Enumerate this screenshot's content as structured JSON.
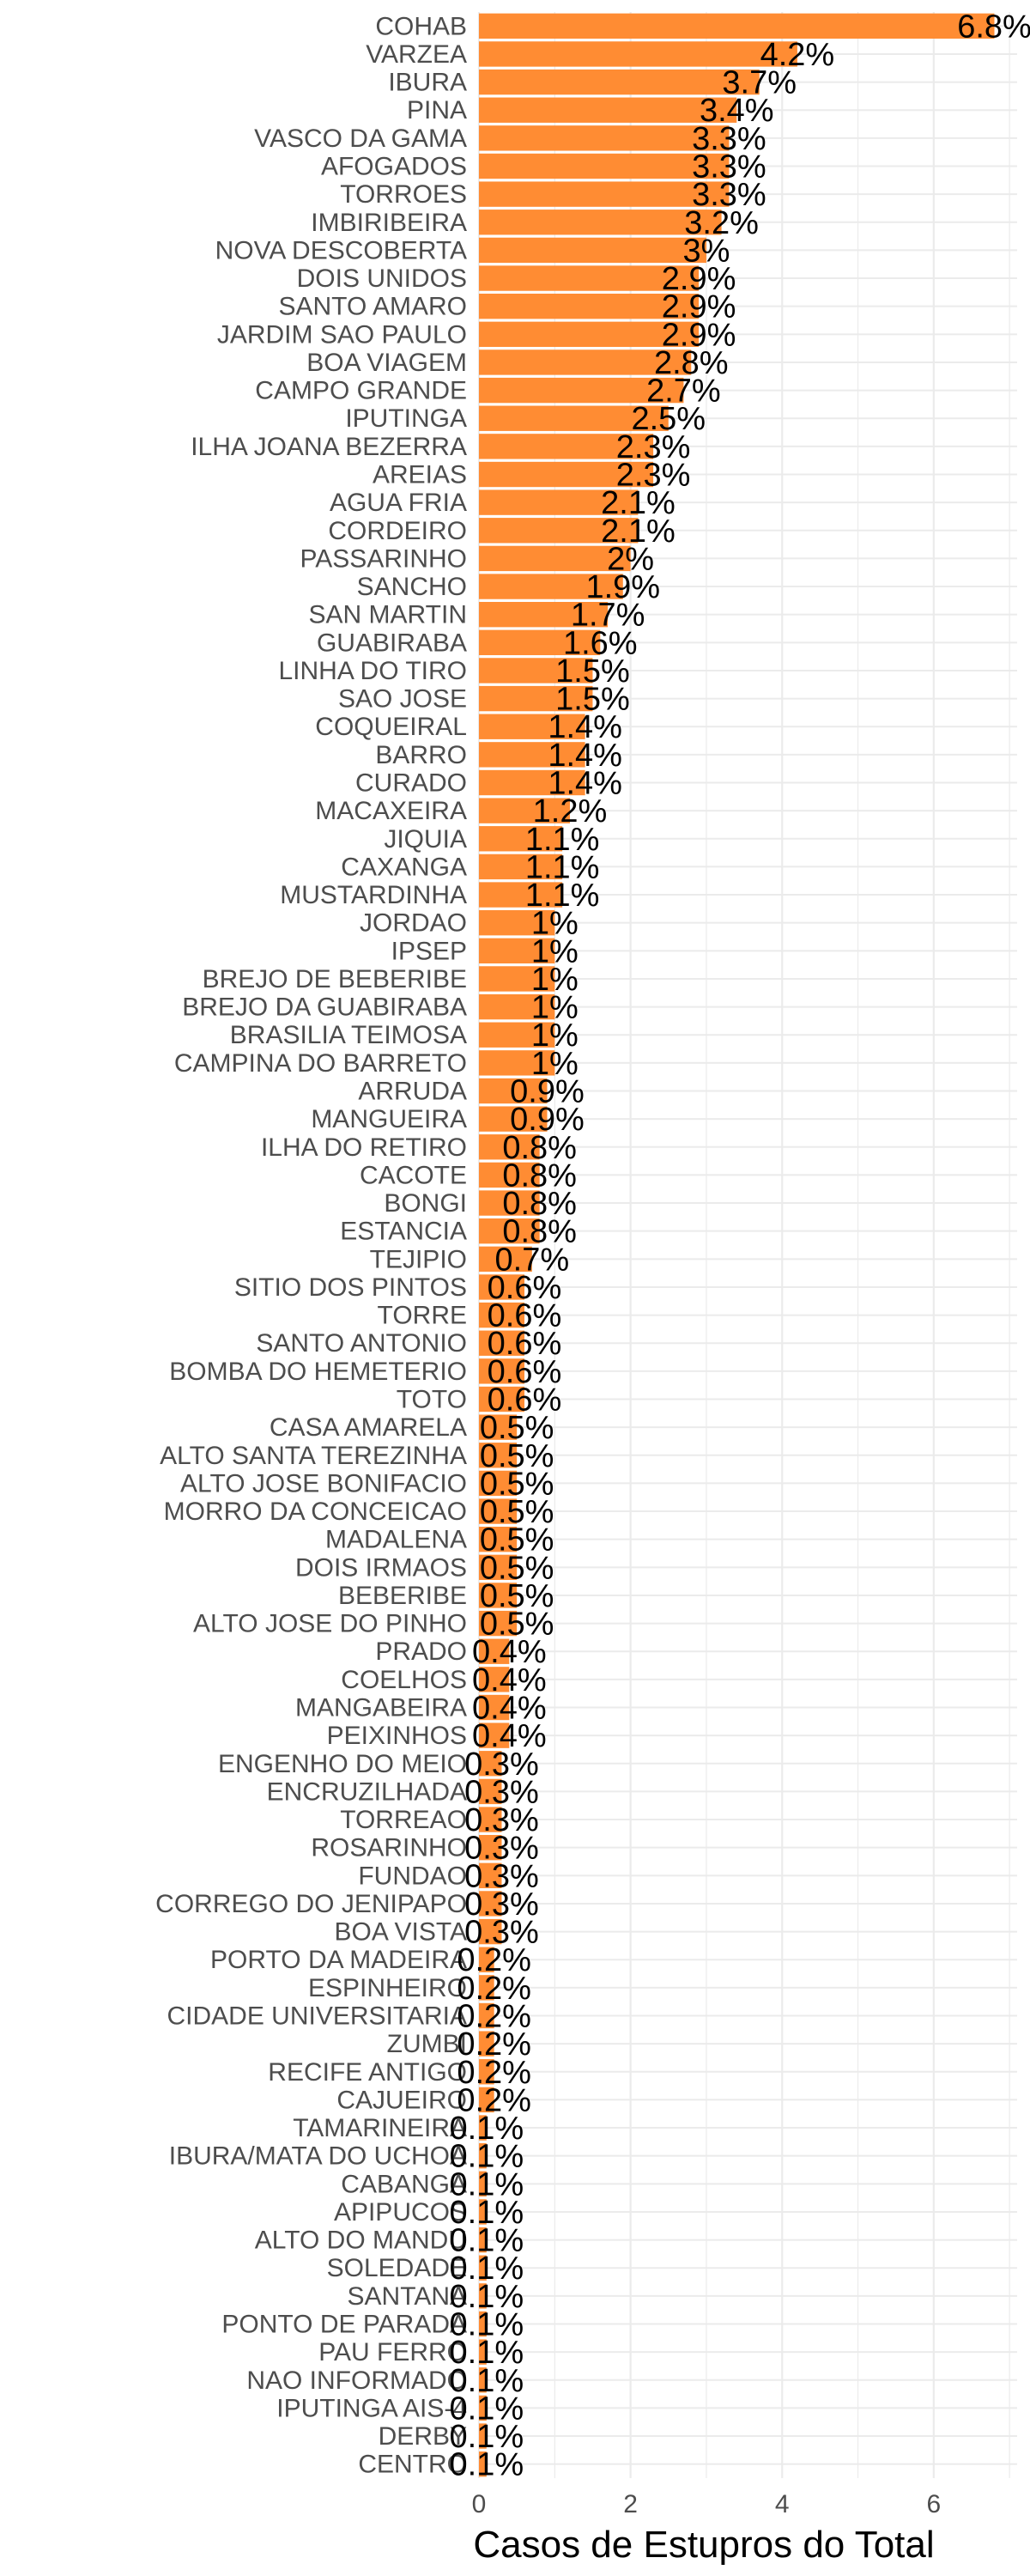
{
  "chart_data": {
    "type": "bar",
    "orientation": "horizontal",
    "xlabel": "Casos de Estupros do Total",
    "ylabel": "",
    "title": "",
    "xlim": [
      0,
      7.1
    ],
    "xticks": [
      0,
      2,
      4,
      6
    ],
    "grid": true,
    "bar_color": "#FF8C33",
    "categories": [
      "COHAB",
      "VARZEA",
      "IBURA",
      "PINA",
      "VASCO DA GAMA",
      "AFOGADOS",
      "TORROES",
      "IMBIRIBEIRA",
      "NOVA DESCOBERTA",
      "DOIS UNIDOS",
      "SANTO AMARO",
      "JARDIM SAO PAULO",
      "BOA VIAGEM",
      "CAMPO GRANDE",
      "IPUTINGA",
      "ILHA JOANA BEZERRA",
      "AREIAS",
      "AGUA FRIA",
      "CORDEIRO",
      "PASSARINHO",
      "SANCHO",
      "SAN MARTIN",
      "GUABIRABA",
      "LINHA DO TIRO",
      "SAO JOSE",
      "COQUEIRAL",
      "BARRO",
      "CURADO",
      "MACAXEIRA",
      "JIQUIA",
      "CAXANGA",
      "MUSTARDINHA",
      "JORDAO",
      "IPSEP",
      "BREJO DE BEBERIBE",
      "BREJO DA GUABIRABA",
      "BRASILIA TEIMOSA",
      "CAMPINA DO BARRETO",
      "ARRUDA",
      "MANGUEIRA",
      "ILHA DO RETIRO",
      "CACOTE",
      "BONGI",
      "ESTANCIA",
      "TEJIPIO",
      "SITIO DOS PINTOS",
      "TORRE",
      "SANTO ANTONIO",
      "BOMBA DO HEMETERIO",
      "TOTO",
      "CASA AMARELA",
      "ALTO SANTA TEREZINHA",
      "ALTO JOSE BONIFACIO",
      "MORRO DA CONCEICAO",
      "MADALENA",
      "DOIS IRMAOS",
      "BEBERIBE",
      "ALTO JOSE DO PINHO",
      "PRADO",
      "COELHOS",
      "MANGABEIRA",
      "PEIXINHOS",
      "ENGENHO DO MEIO",
      "ENCRUZILHADA",
      "TORREAO",
      "ROSARINHO",
      "FUNDAO",
      "CORREGO DO JENIPAPO",
      "BOA VISTA",
      "PORTO DA MADEIRA",
      "ESPINHEIRO",
      "CIDADE UNIVERSITARIA",
      "ZUMBI",
      "RECIFE ANTIGO",
      "CAJUEIRO",
      "TAMARINEIRA",
      "IBURA/MATA DO UCHOA",
      "CABANGA",
      "APIPUCOS",
      "ALTO DO MANDU",
      "SOLEDADE",
      "SANTANA",
      "PONTO DE PARADA",
      "PAU FERRO",
      "NAO INFORMADO",
      "IPUTINGA AIS-4",
      "DERBY",
      "CENTRO"
    ],
    "values": [
      6.8,
      4.2,
      3.7,
      3.4,
      3.3,
      3.3,
      3.3,
      3.2,
      3,
      2.9,
      2.9,
      2.9,
      2.8,
      2.7,
      2.5,
      2.3,
      2.3,
      2.1,
      2.1,
      2,
      1.9,
      1.7,
      1.6,
      1.5,
      1.5,
      1.4,
      1.4,
      1.4,
      1.2,
      1.1,
      1.1,
      1.1,
      1,
      1,
      1,
      1,
      1,
      1,
      0.9,
      0.9,
      0.8,
      0.8,
      0.8,
      0.8,
      0.7,
      0.6,
      0.6,
      0.6,
      0.6,
      0.6,
      0.5,
      0.5,
      0.5,
      0.5,
      0.5,
      0.5,
      0.5,
      0.5,
      0.4,
      0.4,
      0.4,
      0.4,
      0.3,
      0.3,
      0.3,
      0.3,
      0.3,
      0.3,
      0.3,
      0.2,
      0.2,
      0.2,
      0.2,
      0.2,
      0.2,
      0.1,
      0.1,
      0.1,
      0.1,
      0.1,
      0.1,
      0.1,
      0.1,
      0.1,
      0.1,
      0.1,
      0.1,
      0.1
    ],
    "value_labels": [
      "6.8%",
      "4.2%",
      "3.7%",
      "3.4%",
      "3.3%",
      "3.3%",
      "3.3%",
      "3.2%",
      "3%",
      "2.9%",
      "2.9%",
      "2.9%",
      "2.8%",
      "2.7%",
      "2.5%",
      "2.3%",
      "2.3%",
      "2.1%",
      "2.1%",
      "2%",
      "1.9%",
      "1.7%",
      "1.6%",
      "1.5%",
      "1.5%",
      "1.4%",
      "1.4%",
      "1.4%",
      "1.2%",
      "1.1%",
      "1.1%",
      "1.1%",
      "1%",
      "1%",
      "1%",
      "1%",
      "1%",
      "1%",
      "0.9%",
      "0.9%",
      "0.8%",
      "0.8%",
      "0.8%",
      "0.8%",
      "0.7%",
      "0.6%",
      "0.6%",
      "0.6%",
      "0.6%",
      "0.6%",
      "0.5%",
      "0.5%",
      "0.5%",
      "0.5%",
      "0.5%",
      "0.5%",
      "0.5%",
      "0.5%",
      "0.4%",
      "0.4%",
      "0.4%",
      "0.4%",
      "0.3%",
      "0.3%",
      "0.3%",
      "0.3%",
      "0.3%",
      "0.3%",
      "0.3%",
      "0.2%",
      "0.2%",
      "0.2%",
      "0.2%",
      "0.2%",
      "0.2%",
      "0.1%",
      "0.1%",
      "0.1%",
      "0.1%",
      "0.1%",
      "0.1%",
      "0.1%",
      "0.1%",
      "0.1%",
      "0.1%",
      "0.1%",
      "0.1%",
      "0.1%"
    ]
  }
}
